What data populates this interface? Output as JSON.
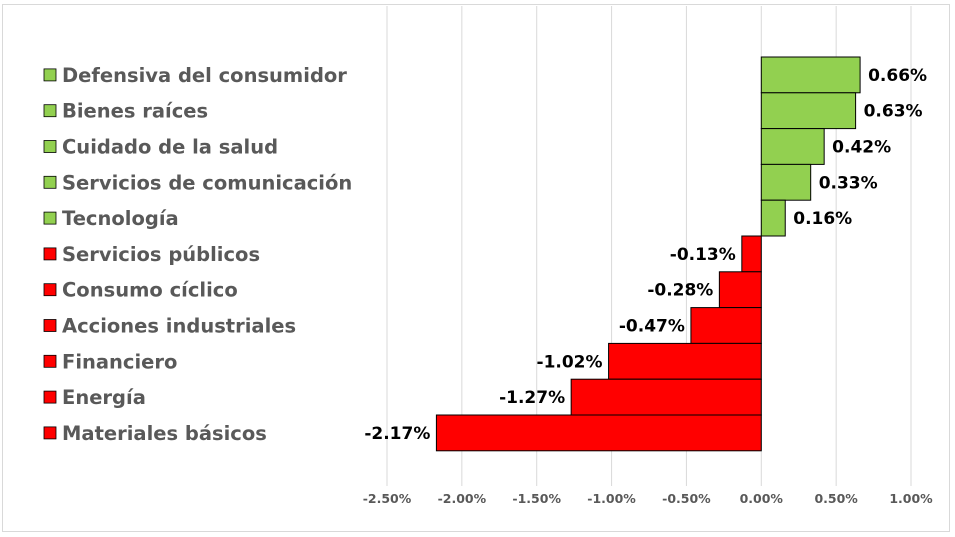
{
  "chart_data": {
    "type": "bar",
    "orientation": "horizontal",
    "title": "",
    "xlabel": "",
    "ylabel": "",
    "categories": [
      "Defensiva del consumidor",
      "Bienes raíces",
      "Cuidado de la salud",
      "Servicios de comunicación",
      "Tecnología",
      "Servicios públicos",
      "Consumo cíclico",
      "Acciones industriales",
      "Financiero",
      "Energía",
      "Materiales básicos"
    ],
    "values": [
      0.66,
      0.63,
      0.42,
      0.33,
      0.16,
      -0.13,
      -0.28,
      -0.47,
      -1.02,
      -1.27,
      -2.17
    ],
    "data_labels": [
      "0.66%",
      "0.63%",
      "0.42%",
      "0.33%",
      "0.16%",
      "-0.13%",
      "-0.28%",
      "-0.47%",
      "-1.02%",
      "-1.27%",
      "-2.17%"
    ],
    "xlim": [
      -2.5,
      1.0
    ],
    "x_ticks": [
      -2.5,
      -2.0,
      -1.5,
      -1.0,
      -0.5,
      0,
      0.5,
      1.0
    ],
    "x_tick_labels": [
      "-2.50%",
      "-2.00%",
      "-1.50%",
      "-1.00%",
      "-0.50%",
      "0.00%",
      "0.50%",
      "1.00%"
    ],
    "grid": "vertical",
    "legend": "left",
    "colors": {
      "positive": "#92D050",
      "negative": "#FF0000"
    }
  }
}
